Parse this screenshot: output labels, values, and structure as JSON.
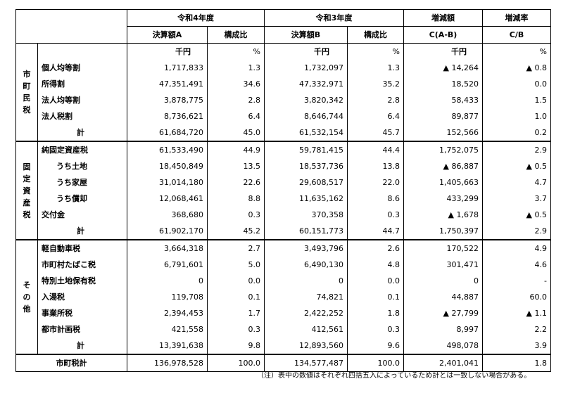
{
  "header": {
    "r4": "令和4年度",
    "r3": "令和3年度",
    "diff": "増減額",
    "rate": "増減率",
    "r4_amount": "決算額A",
    "r4_ratio": "構成比",
    "r3_amount": "決算額B",
    "r3_ratio": "構成比",
    "diff_sub": "C(A-B)",
    "rate_sub": "C/B"
  },
  "units": {
    "amount": "千円",
    "ratio": "%"
  },
  "categories": {
    "city": [
      "市",
      "町",
      "民",
      "税"
    ],
    "fixed": [
      "固",
      "定",
      "資",
      "産",
      "税"
    ],
    "other": [
      "そ",
      "の",
      "他"
    ]
  },
  "rows": {
    "kojin_kinto": [
      "個人均等割",
      "1,717,833",
      "1.3",
      "1,732,097",
      "1.3",
      "14,264",
      "0.8"
    ],
    "shotoku": [
      "所得割",
      "47,351,491",
      "34.6",
      "47,332,971",
      "35.2",
      "18,520",
      "0.0"
    ],
    "hojin_kinto": [
      "法人均等割",
      "3,878,775",
      "2.8",
      "3,820,342",
      "2.8",
      "58,433",
      "1.5"
    ],
    "hojin_zei": [
      "法人税割",
      "8,736,621",
      "6.4",
      "8,646,744",
      "6.4",
      "89,877",
      "1.0"
    ],
    "city_total": [
      "計",
      "61,684,720",
      "45.0",
      "61,532,154",
      "45.7",
      "152,566",
      "0.2"
    ],
    "jun_kotei": [
      "純固定資産税",
      "61,533,490",
      "44.9",
      "59,781,415",
      "44.4",
      "1,752,075",
      "2.9"
    ],
    "tochi": [
      "うち土地",
      "18,450,849",
      "13.5",
      "18,537,736",
      "13.8",
      "86,887",
      "0.5"
    ],
    "kaoku": [
      "うち家屋",
      "31,014,180",
      "22.6",
      "29,608,517",
      "22.0",
      "1,405,663",
      "4.7"
    ],
    "shokyaku": [
      "うち償却",
      "12,068,461",
      "8.8",
      "11,635,162",
      "8.6",
      "433,299",
      "3.7"
    ],
    "kofukin": [
      "交付金",
      "368,680",
      "0.3",
      "370,358",
      "0.3",
      "1,678",
      "0.5"
    ],
    "fixed_total": [
      "計",
      "61,902,170",
      "45.2",
      "60,151,773",
      "44.7",
      "1,750,397",
      "2.9"
    ],
    "kei_jidosha": [
      "軽自動車税",
      "3,664,318",
      "2.7",
      "3,493,796",
      "2.6",
      "170,522",
      "4.9"
    ],
    "tabako": [
      "市町村たばこ税",
      "6,791,601",
      "5.0",
      "6,490,130",
      "4.8",
      "301,471",
      "4.6"
    ],
    "tokubetsu": [
      "特別土地保有税",
      "0",
      "0.0",
      "0",
      "0.0",
      "0",
      "-"
    ],
    "nyuto": [
      "入湯税",
      "119,708",
      "0.1",
      "74,821",
      "0.1",
      "44,887",
      "60.0"
    ],
    "jigyosho": [
      "事業所税",
      "2,394,453",
      "1.7",
      "2,422,252",
      "1.8",
      "27,799",
      "1.1"
    ],
    "toshi_keikaku": [
      "都市計画税",
      "421,558",
      "0.3",
      "412,561",
      "0.3",
      "8,997",
      "2.2"
    ],
    "other_total": [
      "計",
      "13,391,638",
      "9.8",
      "12,893,560",
      "9.6",
      "498,078",
      "3.9"
    ],
    "grand_total": [
      "市町税計",
      "136,978,528",
      "100.0",
      "134,577,487",
      "100.0",
      "2,401,041",
      "1.8"
    ]
  },
  "note": "（注）表中の数値はそれぞれ四捨五入によっているため計とは一致しない場合がある。"
}
